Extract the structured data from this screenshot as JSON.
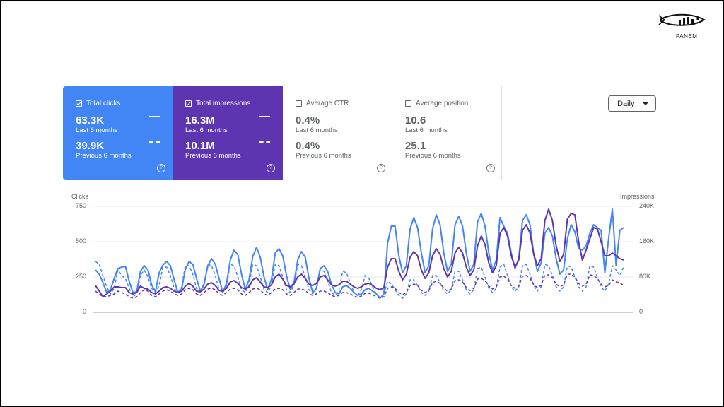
{
  "brand": {
    "name": "PANEM"
  },
  "cards": [
    {
      "label": "Total clicks",
      "checked": true,
      "value": "63.3K",
      "period": "Last 6 months",
      "prev_value": "39.9K",
      "prev_period": "Previous 6 months",
      "help": "?"
    },
    {
      "label": "Total impressions",
      "checked": true,
      "value": "16.3M",
      "period": "Last 6 months",
      "prev_value": "10.1M",
      "prev_period": "Previous 6 months",
      "help": "?"
    },
    {
      "label": "Average CTR",
      "checked": false,
      "value": "0.4%",
      "period": "Last 6 months",
      "prev_value": "0.4%",
      "prev_period": "Previous 6 months",
      "help": "?"
    },
    {
      "label": "Average position",
      "checked": false,
      "value": "10.6",
      "period": "Last 6 months",
      "prev_value": "25.1",
      "prev_period": "Previous 6 months",
      "help": "?"
    }
  ],
  "granularity": {
    "selected": "Daily"
  },
  "colors": {
    "clicks": "#4285f4",
    "impressions": "#5e35b1",
    "grid": "#e8eaed",
    "axis": "#9aa0a6"
  },
  "chart_data": {
    "type": "line",
    "y_left": {
      "label": "Clicks",
      "ticks": [
        "750",
        "500",
        "250",
        "0"
      ],
      "range": [
        0,
        750
      ]
    },
    "y_right": {
      "label": "Impressions",
      "ticks": [
        "240K",
        "160K",
        "80K",
        "0"
      ],
      "range": [
        0,
        240000
      ]
    },
    "grid": true,
    "series": [
      {
        "metric": "clicks",
        "period": "last",
        "style": "solid",
        "color": "#4285f4",
        "values": [
          300,
          270,
          210,
          140,
          160,
          240,
          310,
          320,
          325,
          220,
          140,
          145,
          290,
          330,
          300,
          195,
          145,
          280,
          335,
          360,
          330,
          230,
          140,
          165,
          305,
          360,
          340,
          240,
          150,
          200,
          330,
          380,
          340,
          240,
          140,
          205,
          370,
          440,
          410,
          270,
          160,
          230,
          395,
          460,
          390,
          250,
          160,
          235,
          420,
          450,
          400,
          260,
          160,
          210,
          370,
          430,
          390,
          240,
          140,
          170,
          310,
          330,
          290,
          200,
          140,
          130,
          180,
          190,
          170,
          140,
          120,
          130,
          160,
          170,
          150,
          130,
          100,
          130,
          490,
          610,
          610,
          400,
          280,
          330,
          590,
          670,
          600,
          420,
          280,
          330,
          590,
          690,
          620,
          420,
          290,
          340,
          620,
          680,
          610,
          420,
          290,
          340,
          640,
          700,
          610,
          420,
          300,
          370,
          670,
          610,
          560,
          420,
          310,
          380,
          650,
          690,
          620,
          410,
          290,
          350,
          560,
          600,
          540,
          380,
          270,
          300,
          520,
          620,
          570,
          450,
          440,
          470,
          560,
          620,
          600,
          580,
          280,
          520,
          730,
          330,
          580,
          600
        ]
      },
      {
        "metric": "impressions",
        "period": "last",
        "style": "solid",
        "color": "#5e35b1",
        "values": [
          190,
          150,
          110,
          130,
          150,
          180,
          180,
          175,
          175,
          140,
          130,
          140,
          185,
          170,
          165,
          140,
          130,
          150,
          175,
          180,
          170,
          150,
          140,
          150,
          185,
          205,
          185,
          150,
          145,
          165,
          200,
          210,
          190,
          155,
          150,
          170,
          215,
          225,
          205,
          175,
          165,
          180,
          230,
          245,
          215,
          180,
          175,
          195,
          250,
          270,
          235,
          190,
          180,
          205,
          250,
          270,
          240,
          200,
          190,
          205,
          250,
          260,
          230,
          195,
          185,
          195,
          220,
          220,
          200,
          180,
          170,
          180,
          200,
          205,
          190,
          170,
          160,
          175,
          320,
          380,
          380,
          290,
          230,
          270,
          390,
          430,
          400,
          300,
          240,
          280,
          400,
          450,
          410,
          310,
          250,
          290,
          420,
          460,
          420,
          320,
          260,
          300,
          470,
          540,
          480,
          350,
          280,
          330,
          560,
          600,
          540,
          400,
          320,
          370,
          580,
          620,
          560,
          410,
          330,
          380,
          650,
          730,
          650,
          470,
          360,
          410,
          660,
          700,
          690,
          500,
          370,
          440,
          520,
          600,
          590,
          500,
          400,
          400,
          420,
          400,
          380,
          370
        ]
      },
      {
        "metric": "clicks",
        "period": "previous",
        "style": "dashed",
        "color": "#4285f4",
        "values": [
          360,
          340,
          260,
          180,
          130,
          170,
          300,
          260,
          240,
          170,
          110,
          130,
          260,
          300,
          250,
          170,
          140,
          190,
          320,
          320,
          260,
          170,
          140,
          180,
          330,
          330,
          270,
          170,
          150,
          190,
          340,
          330,
          260,
          160,
          140,
          190,
          340,
          330,
          250,
          160,
          140,
          190,
          340,
          330,
          250,
          160,
          140,
          190,
          340,
          330,
          250,
          160,
          140,
          190,
          340,
          330,
          250,
          160,
          130,
          170,
          300,
          290,
          220,
          140,
          120,
          160,
          290,
          280,
          210,
          140,
          120,
          160,
          260,
          240,
          180,
          130,
          100,
          130,
          220,
          200,
          160,
          120,
          100,
          130,
          230,
          230,
          190,
          140,
          120,
          150,
          260,
          260,
          210,
          150,
          130,
          160,
          290,
          290,
          230,
          160,
          130,
          160,
          310,
          320,
          250,
          170,
          140,
          170,
          320,
          340,
          260,
          180,
          150,
          180,
          330,
          340,
          270,
          190,
          150,
          180,
          340,
          330,
          260,
          180,
          150,
          180,
          330,
          320,
          250,
          180,
          150,
          180,
          330,
          320,
          250,
          180,
          150,
          200,
          330,
          300,
          260,
          320
        ]
      },
      {
        "metric": "impressions",
        "period": "previous",
        "style": "dashed",
        "color": "#5e35b1",
        "values": [
          150,
          130,
          110,
          110,
          120,
          130,
          150,
          140,
          130,
          110,
          100,
          110,
          140,
          160,
          150,
          120,
          110,
          130,
          150,
          160,
          150,
          130,
          120,
          130,
          160,
          170,
          160,
          130,
          120,
          140,
          165,
          170,
          160,
          130,
          120,
          140,
          165,
          170,
          160,
          130,
          120,
          140,
          165,
          170,
          160,
          130,
          120,
          140,
          165,
          170,
          160,
          130,
          120,
          140,
          165,
          165,
          155,
          130,
          120,
          130,
          150,
          150,
          140,
          120,
          110,
          120,
          140,
          140,
          130,
          115,
          105,
          115,
          135,
          135,
          125,
          110,
          100,
          110,
          170,
          180,
          170,
          140,
          125,
          140,
          190,
          200,
          190,
          155,
          140,
          155,
          210,
          220,
          205,
          170,
          150,
          165,
          225,
          230,
          215,
          175,
          155,
          170,
          235,
          240,
          225,
          185,
          165,
          180,
          250,
          255,
          235,
          190,
          170,
          185,
          255,
          260,
          240,
          195,
          175,
          190,
          265,
          265,
          245,
          200,
          180,
          195,
          270,
          270,
          250,
          205,
          185,
          200,
          265,
          260,
          240,
          200,
          180,
          190,
          230,
          215,
          210,
          190
        ]
      }
    ]
  }
}
